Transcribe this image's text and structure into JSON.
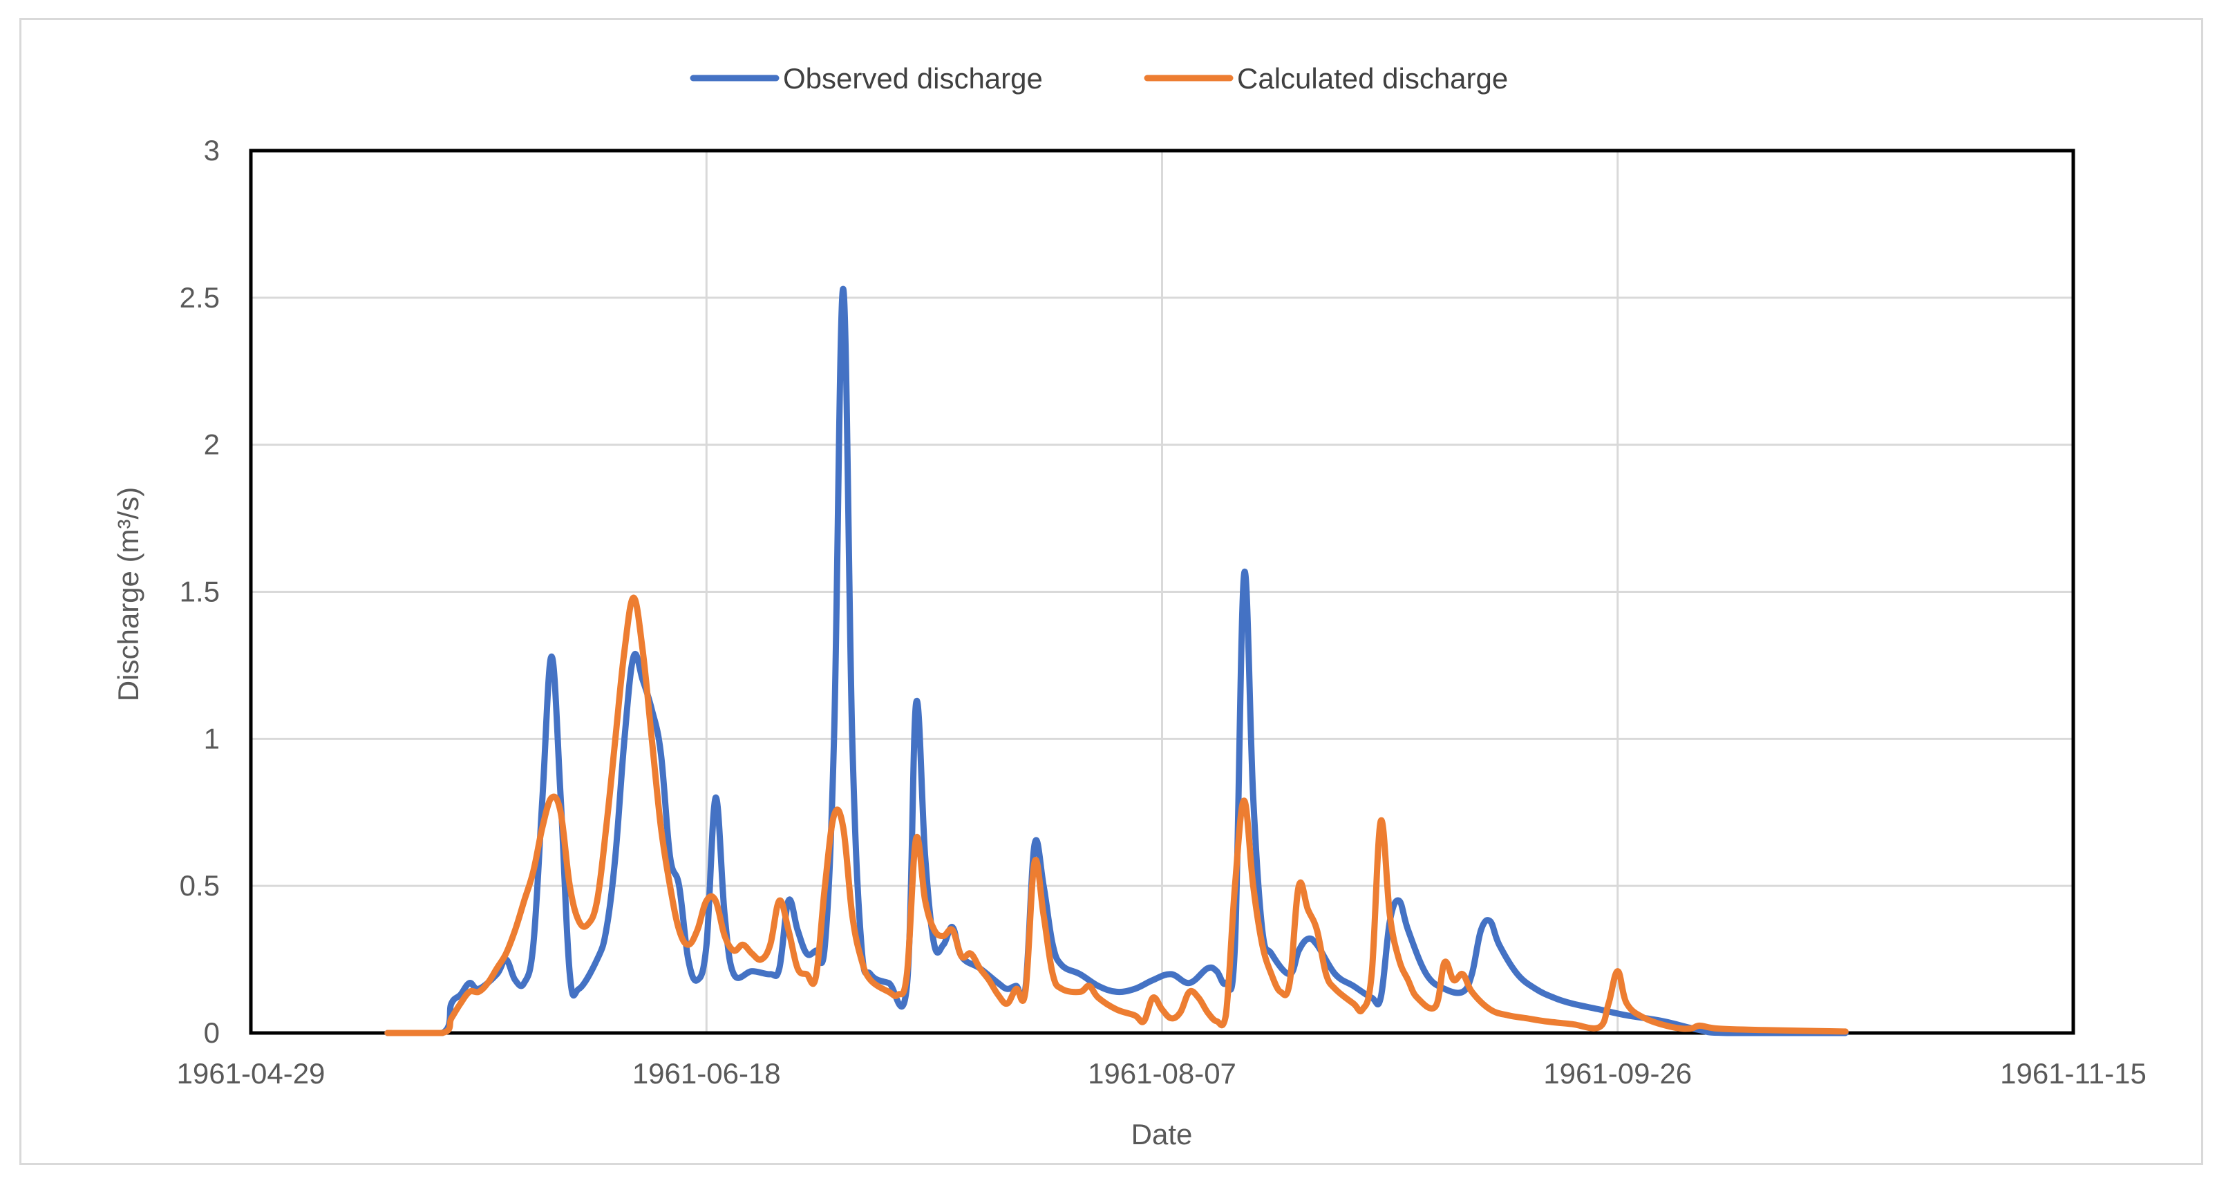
{
  "chart_data": {
    "type": "line",
    "title": "",
    "xlabel": "Date",
    "ylabel": "Discharge (m³/s)",
    "ylim": [
      0,
      3
    ],
    "yticks": [
      "0",
      "0.5",
      "1",
      "1.5",
      "2",
      "2.5",
      "3"
    ],
    "xlim": [
      "1961-04-29",
      "1961-11-15"
    ],
    "xticks": [
      "1961-04-29",
      "1961-06-18",
      "1961-08-07",
      "1961-09-26",
      "1961-11-15"
    ],
    "grid": true,
    "legend_position": "top",
    "series": [
      {
        "name": "Observed discharge",
        "color": "#4472C4",
        "points": [
          [
            "1961-05-14",
            0
          ],
          [
            "1961-05-20",
            0
          ],
          [
            "1961-05-21",
            0.1
          ],
          [
            "1961-05-22",
            0.13
          ],
          [
            "1961-05-23",
            0.17
          ],
          [
            "1961-05-24",
            0.15
          ],
          [
            "1961-05-26",
            0.2
          ],
          [
            "1961-05-27",
            0.25
          ],
          [
            "1961-05-28",
            0.18
          ],
          [
            "1961-05-29",
            0.17
          ],
          [
            "1961-05-30",
            0.3
          ],
          [
            "1961-05-31",
            0.8
          ],
          [
            "1961-06-01",
            1.28
          ],
          [
            "1961-06-02",
            0.8
          ],
          [
            "1961-06-03",
            0.2
          ],
          [
            "1961-06-04",
            0.15
          ],
          [
            "1961-06-06",
            0.25
          ],
          [
            "1961-06-07",
            0.35
          ],
          [
            "1961-06-08",
            0.6
          ],
          [
            "1961-06-09",
            1.0
          ],
          [
            "1961-06-10",
            1.28
          ],
          [
            "1961-06-11",
            1.2
          ],
          [
            "1961-06-12",
            1.1
          ],
          [
            "1961-06-13",
            0.95
          ],
          [
            "1961-06-14",
            0.6
          ],
          [
            "1961-06-15",
            0.5
          ],
          [
            "1961-06-16",
            0.25
          ],
          [
            "1961-06-17",
            0.18
          ],
          [
            "1961-06-18",
            0.3
          ],
          [
            "1961-06-19",
            0.8
          ],
          [
            "1961-06-20",
            0.4
          ],
          [
            "1961-06-21",
            0.2
          ],
          [
            "1961-06-23",
            0.21
          ],
          [
            "1961-06-25",
            0.2
          ],
          [
            "1961-06-26",
            0.22
          ],
          [
            "1961-06-27",
            0.45
          ],
          [
            "1961-06-28",
            0.35
          ],
          [
            "1961-06-29",
            0.27
          ],
          [
            "1961-06-30",
            0.28
          ],
          [
            "1961-07-01",
            0.3
          ],
          [
            "1961-07-02",
            1.0
          ],
          [
            "1961-07-03",
            2.53
          ],
          [
            "1961-07-04",
            1.0
          ],
          [
            "1961-07-05",
            0.3
          ],
          [
            "1961-07-06",
            0.2
          ],
          [
            "1961-07-08",
            0.17
          ],
          [
            "1961-07-10",
            0.16
          ],
          [
            "1961-07-11",
            1.12
          ],
          [
            "1961-07-12",
            0.6
          ],
          [
            "1961-07-13",
            0.3
          ],
          [
            "1961-07-14",
            0.3
          ],
          [
            "1961-07-15",
            0.36
          ],
          [
            "1961-07-16",
            0.26
          ],
          [
            "1961-07-18",
            0.22
          ],
          [
            "1961-07-20",
            0.17
          ],
          [
            "1961-07-21",
            0.15
          ],
          [
            "1961-07-22",
            0.16
          ],
          [
            "1961-07-23",
            0.15
          ],
          [
            "1961-07-24",
            0.64
          ],
          [
            "1961-07-25",
            0.5
          ],
          [
            "1961-07-26",
            0.3
          ],
          [
            "1961-07-27",
            0.23
          ],
          [
            "1961-07-29",
            0.2
          ],
          [
            "1961-07-31",
            0.16
          ],
          [
            "1961-08-02",
            0.14
          ],
          [
            "1961-08-04",
            0.15
          ],
          [
            "1961-08-06",
            0.18
          ],
          [
            "1961-08-08",
            0.2
          ],
          [
            "1961-08-10",
            0.17
          ],
          [
            "1961-08-12",
            0.22
          ],
          [
            "1961-08-13",
            0.21
          ],
          [
            "1961-08-14",
            0.17
          ],
          [
            "1961-08-15",
            0.3
          ],
          [
            "1961-08-16",
            1.56
          ],
          [
            "1961-08-17",
            0.8
          ],
          [
            "1961-08-18",
            0.35
          ],
          [
            "1961-08-19",
            0.27
          ],
          [
            "1961-08-21",
            0.2
          ],
          [
            "1961-08-22",
            0.28
          ],
          [
            "1961-08-23",
            0.32
          ],
          [
            "1961-08-24",
            0.3
          ],
          [
            "1961-08-26",
            0.2
          ],
          [
            "1961-08-28",
            0.16
          ],
          [
            "1961-08-30",
            0.12
          ],
          [
            "1961-08-31",
            0.12
          ],
          [
            "1961-09-01",
            0.38
          ],
          [
            "1961-09-02",
            0.45
          ],
          [
            "1961-09-03",
            0.35
          ],
          [
            "1961-09-05",
            0.2
          ],
          [
            "1961-09-07",
            0.15
          ],
          [
            "1961-09-09",
            0.14
          ],
          [
            "1961-09-10",
            0.2
          ],
          [
            "1961-09-11",
            0.35
          ],
          [
            "1961-09-12",
            0.38
          ],
          [
            "1961-09-13",
            0.3
          ],
          [
            "1961-09-15",
            0.2
          ],
          [
            "1961-09-17",
            0.15
          ],
          [
            "1961-09-19",
            0.12
          ],
          [
            "1961-09-21",
            0.1
          ],
          [
            "1961-09-24",
            0.08
          ],
          [
            "1961-09-27",
            0.06
          ],
          [
            "1961-10-01",
            0.04
          ],
          [
            "1961-10-05",
            0.01
          ],
          [
            "1961-10-08",
            0
          ],
          [
            "1961-10-21",
            0
          ]
        ]
      },
      {
        "name": "Calculated discharge",
        "color": "#ED7D31",
        "points": [
          [
            "1961-05-14",
            0
          ],
          [
            "1961-05-20",
            0
          ],
          [
            "1961-05-21",
            0.05
          ],
          [
            "1961-05-22",
            0.1
          ],
          [
            "1961-05-23",
            0.14
          ],
          [
            "1961-05-24",
            0.14
          ],
          [
            "1961-05-25",
            0.17
          ],
          [
            "1961-05-26",
            0.22
          ],
          [
            "1961-05-27",
            0.27
          ],
          [
            "1961-05-28",
            0.35
          ],
          [
            "1961-05-29",
            0.45
          ],
          [
            "1961-05-30",
            0.55
          ],
          [
            "1961-05-31",
            0.7
          ],
          [
            "1961-06-01",
            0.8
          ],
          [
            "1961-06-02",
            0.75
          ],
          [
            "1961-06-03",
            0.5
          ],
          [
            "1961-06-04",
            0.38
          ],
          [
            "1961-06-05",
            0.37
          ],
          [
            "1961-06-06",
            0.45
          ],
          [
            "1961-06-07",
            0.7
          ],
          [
            "1961-06-08",
            1.0
          ],
          [
            "1961-06-09",
            1.3
          ],
          [
            "1961-06-10",
            1.48
          ],
          [
            "1961-06-11",
            1.3
          ],
          [
            "1961-06-12",
            1.0
          ],
          [
            "1961-06-13",
            0.7
          ],
          [
            "1961-06-14",
            0.5
          ],
          [
            "1961-06-15",
            0.35
          ],
          [
            "1961-06-16",
            0.3
          ],
          [
            "1961-06-17",
            0.35
          ],
          [
            "1961-06-18",
            0.45
          ],
          [
            "1961-06-19",
            0.45
          ],
          [
            "1961-06-20",
            0.33
          ],
          [
            "1961-06-21",
            0.28
          ],
          [
            "1961-06-22",
            0.3
          ],
          [
            "1961-06-23",
            0.27
          ],
          [
            "1961-06-24",
            0.25
          ],
          [
            "1961-06-25",
            0.3
          ],
          [
            "1961-06-26",
            0.45
          ],
          [
            "1961-06-27",
            0.35
          ],
          [
            "1961-06-28",
            0.22
          ],
          [
            "1961-06-29",
            0.2
          ],
          [
            "1961-06-30",
            0.19
          ],
          [
            "1961-07-01",
            0.5
          ],
          [
            "1961-07-02",
            0.74
          ],
          [
            "1961-07-03",
            0.7
          ],
          [
            "1961-07-04",
            0.4
          ],
          [
            "1961-07-05",
            0.25
          ],
          [
            "1961-07-06",
            0.18
          ],
          [
            "1961-07-08",
            0.14
          ],
          [
            "1961-07-09",
            0.13
          ],
          [
            "1961-07-10",
            0.2
          ],
          [
            "1961-07-11",
            0.66
          ],
          [
            "1961-07-12",
            0.45
          ],
          [
            "1961-07-13",
            0.35
          ],
          [
            "1961-07-14",
            0.33
          ],
          [
            "1961-07-15",
            0.35
          ],
          [
            "1961-07-16",
            0.26
          ],
          [
            "1961-07-17",
            0.27
          ],
          [
            "1961-07-18",
            0.22
          ],
          [
            "1961-07-19",
            0.18
          ],
          [
            "1961-07-20",
            0.13
          ],
          [
            "1961-07-21",
            0.1
          ],
          [
            "1961-07-22",
            0.15
          ],
          [
            "1961-07-23",
            0.14
          ],
          [
            "1961-07-24",
            0.58
          ],
          [
            "1961-07-25",
            0.4
          ],
          [
            "1961-07-26",
            0.2
          ],
          [
            "1961-07-27",
            0.15
          ],
          [
            "1961-07-29",
            0.14
          ],
          [
            "1961-07-30",
            0.16
          ],
          [
            "1961-07-31",
            0.12
          ],
          [
            "1961-08-02",
            0.08
          ],
          [
            "1961-08-04",
            0.06
          ],
          [
            "1961-08-05",
            0.04
          ],
          [
            "1961-08-06",
            0.12
          ],
          [
            "1961-08-07",
            0.08
          ],
          [
            "1961-08-08",
            0.05
          ],
          [
            "1961-08-09",
            0.07
          ],
          [
            "1961-08-10",
            0.14
          ],
          [
            "1961-08-11",
            0.12
          ],
          [
            "1961-08-12",
            0.07
          ],
          [
            "1961-08-13",
            0.04
          ],
          [
            "1961-08-14",
            0.06
          ],
          [
            "1961-08-15",
            0.5
          ],
          [
            "1961-08-16",
            0.79
          ],
          [
            "1961-08-17",
            0.5
          ],
          [
            "1961-08-18",
            0.3
          ],
          [
            "1961-08-19",
            0.2
          ],
          [
            "1961-08-20",
            0.14
          ],
          [
            "1961-08-21",
            0.17
          ],
          [
            "1961-08-22",
            0.5
          ],
          [
            "1961-08-23",
            0.42
          ],
          [
            "1961-08-24",
            0.35
          ],
          [
            "1961-08-25",
            0.2
          ],
          [
            "1961-08-26",
            0.15
          ],
          [
            "1961-08-28",
            0.1
          ],
          [
            "1961-08-29",
            0.08
          ],
          [
            "1961-08-30",
            0.2
          ],
          [
            "1961-08-31",
            0.72
          ],
          [
            "1961-09-01",
            0.4
          ],
          [
            "1961-09-02",
            0.25
          ],
          [
            "1961-09-03",
            0.18
          ],
          [
            "1961-09-04",
            0.12
          ],
          [
            "1961-09-06",
            0.09
          ],
          [
            "1961-09-07",
            0.24
          ],
          [
            "1961-09-08",
            0.18
          ],
          [
            "1961-09-09",
            0.2
          ],
          [
            "1961-09-10",
            0.14
          ],
          [
            "1961-09-12",
            0.08
          ],
          [
            "1961-09-14",
            0.06
          ],
          [
            "1961-09-16",
            0.05
          ],
          [
            "1961-09-18",
            0.04
          ],
          [
            "1961-09-21",
            0.03
          ],
          [
            "1961-09-24",
            0.02
          ],
          [
            "1961-09-25",
            0.1
          ],
          [
            "1961-09-26",
            0.21
          ],
          [
            "1961-09-27",
            0.1
          ],
          [
            "1961-09-29",
            0.05
          ],
          [
            "1961-10-02",
            0.02
          ],
          [
            "1961-10-04",
            0.015
          ],
          [
            "1961-10-05",
            0.025
          ],
          [
            "1961-10-07",
            0.015
          ],
          [
            "1961-10-12",
            0.01
          ],
          [
            "1961-10-21",
            0.005
          ]
        ]
      }
    ]
  }
}
